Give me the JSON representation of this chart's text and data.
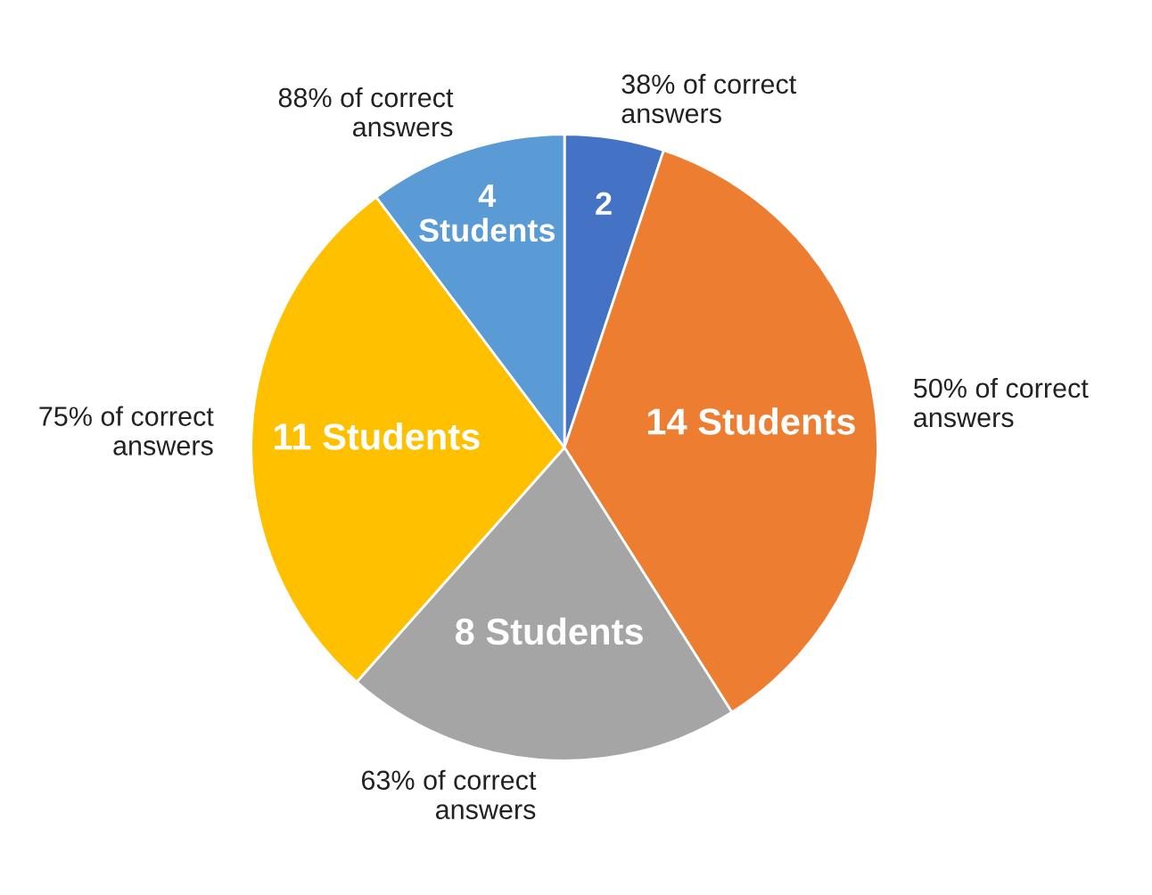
{
  "chart_data": {
    "type": "pie",
    "categories": [
      "38% of correct\nanswers",
      "50% of correct\nanswers",
      "63% of correct\nanswers",
      "75% of correct\nanswers",
      "88% of correct\nanswers"
    ],
    "values": [
      2,
      14,
      8,
      11,
      4
    ],
    "value_labels": [
      "2",
      "14 Students",
      "8 Students",
      "11 Students",
      "4\nStudents"
    ],
    "colors": [
      "#4472c4",
      "#ed7d31",
      "#a5a5a5",
      "#ffc000",
      "#5b9bd5"
    ]
  }
}
